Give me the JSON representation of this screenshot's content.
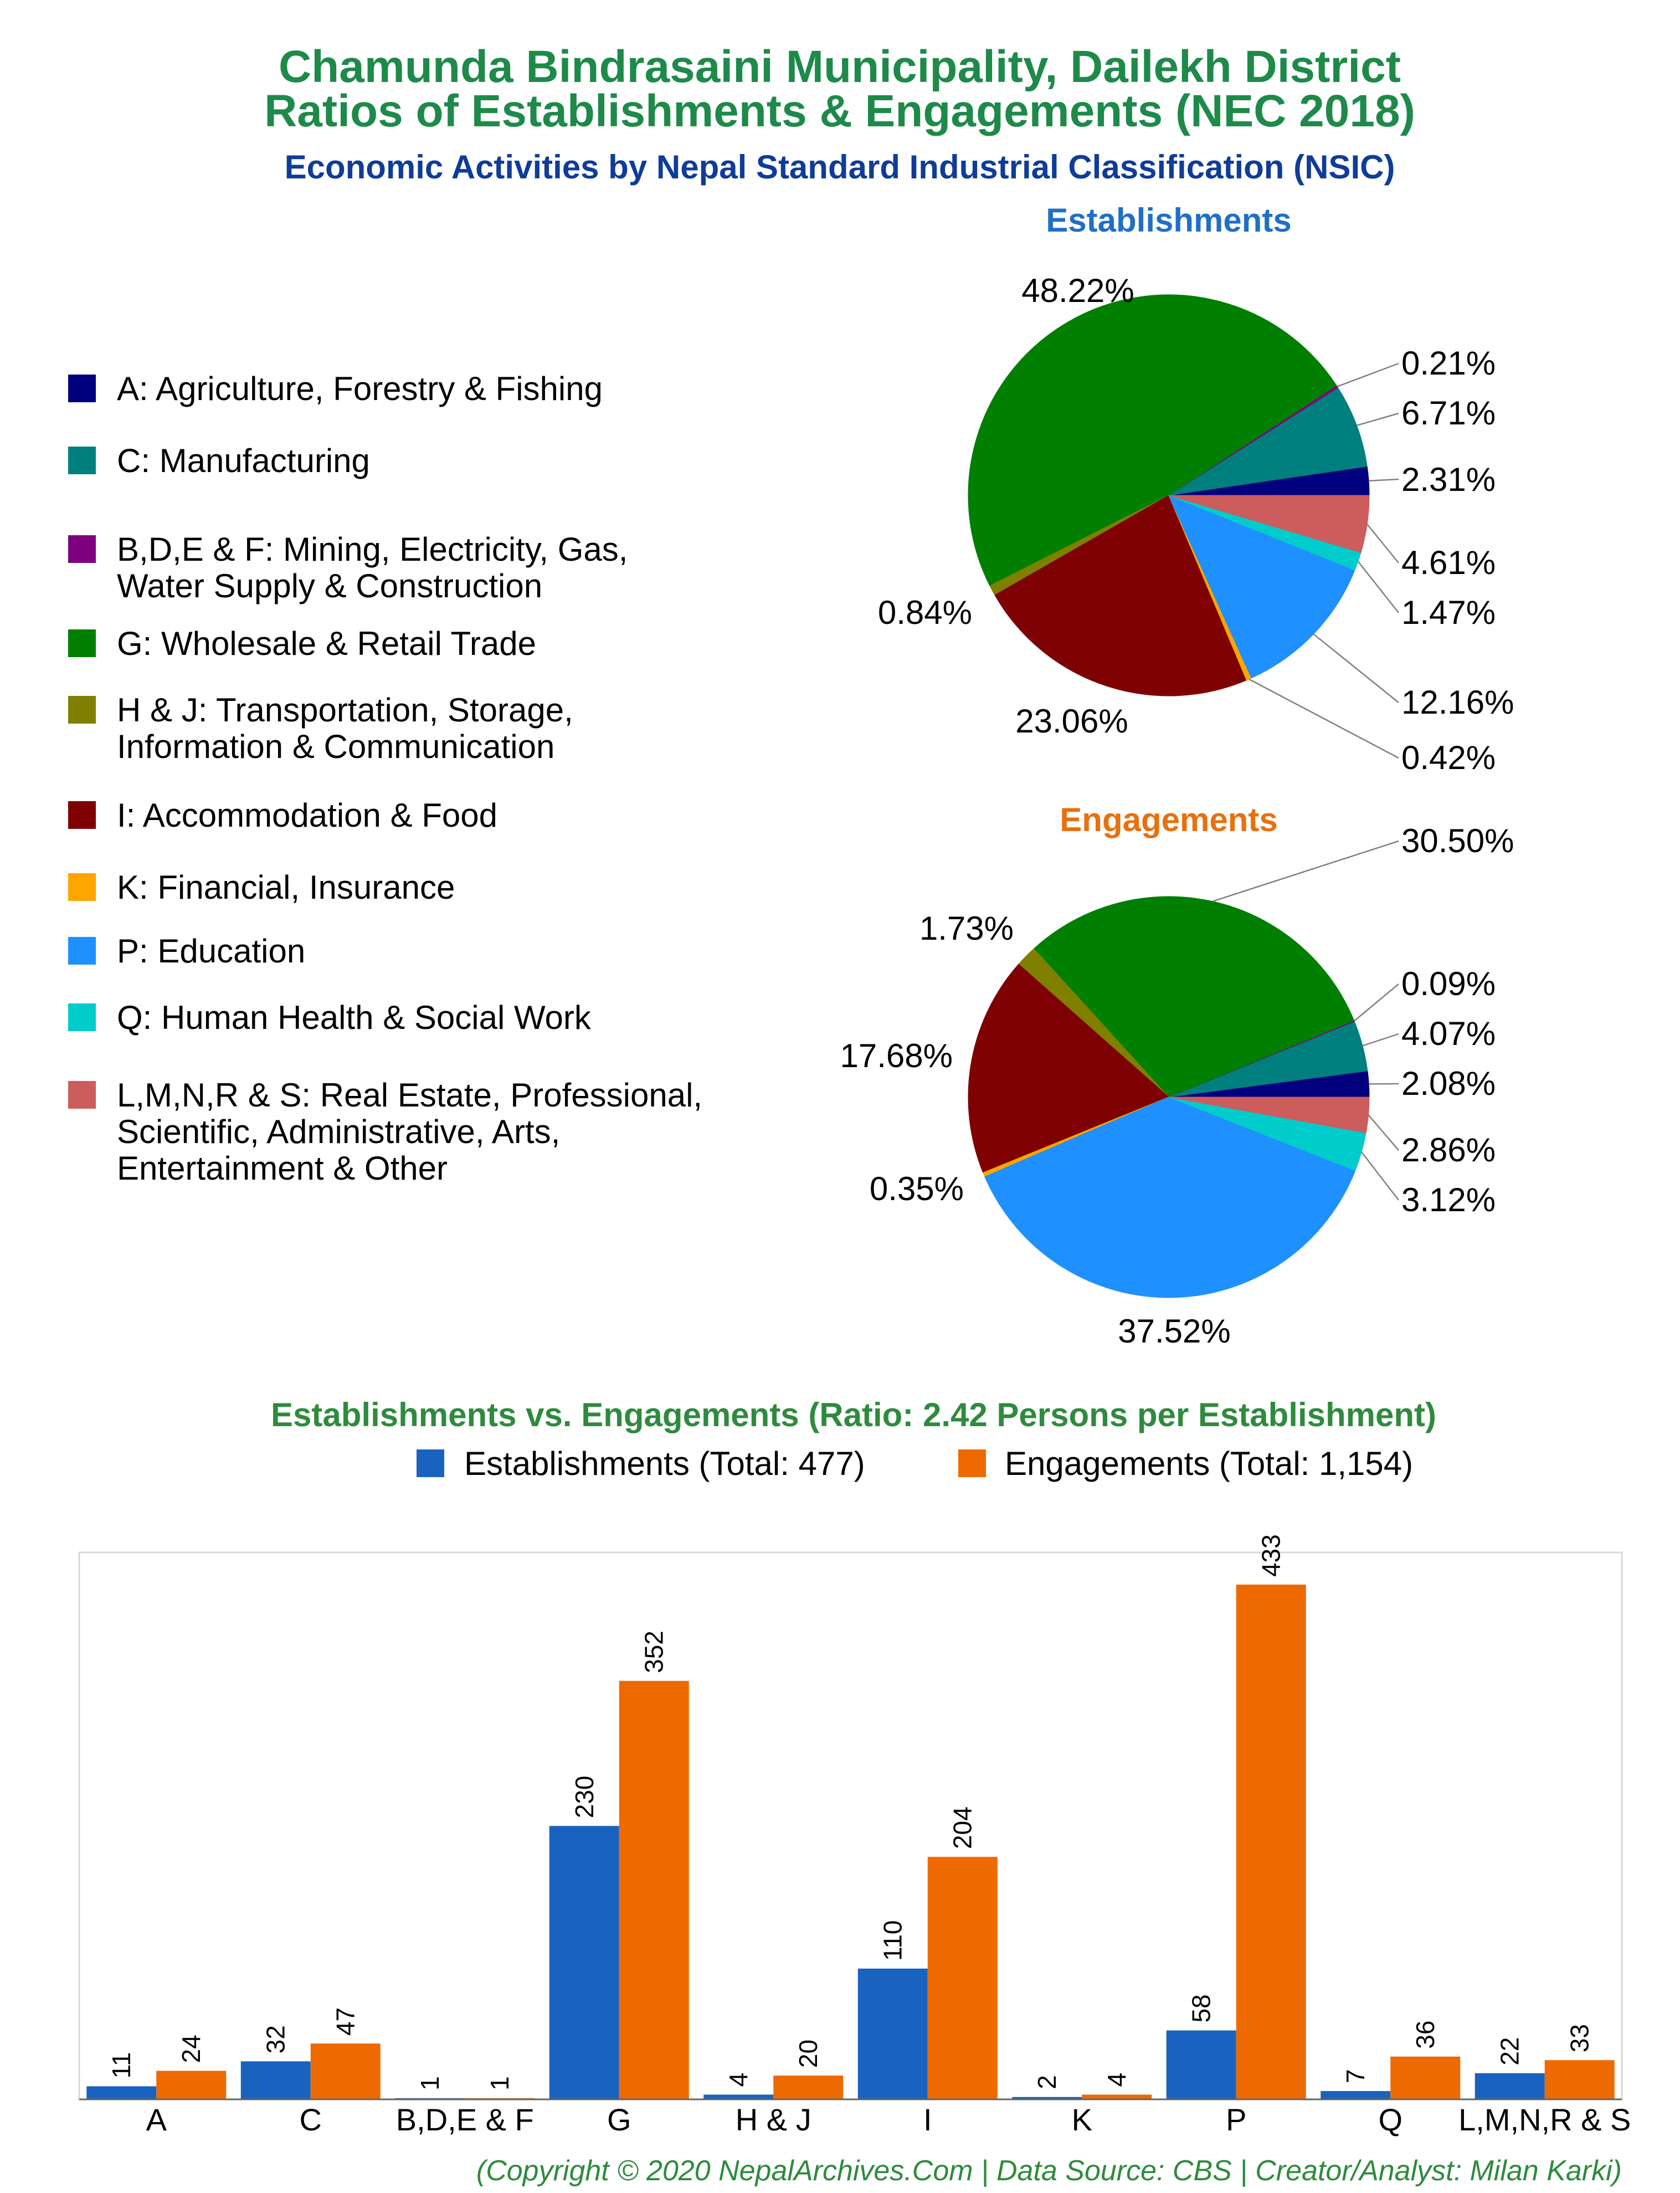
{
  "header": {
    "title_line1": "Chamunda Bindrasaini Municipality, Dailekh District",
    "title_line2": "Ratios of Establishments & Engagements (NEC 2018)",
    "subtitle": "Economic Activities by Nepal Standard Industrial Classification (NSIC)"
  },
  "colors": {
    "title": "#1e8a4a",
    "subtitle": "#0f3c9a",
    "establishments_title": "#1f6fc8",
    "engagements_title": "#e8700f",
    "bar_establishments": "#1a62bf",
    "bar_engagements": "#ee6a00"
  },
  "legend": {
    "items": [
      {
        "lines": [
          "A: Agriculture, Forestry & Fishing"
        ],
        "color": "#00007f"
      },
      {
        "lines": [
          "C: Manufacturing"
        ],
        "color": "#007f7f"
      },
      {
        "lines": [
          "B,D,E & F: Mining, Electricity, Gas,",
          "Water Supply & Construction"
        ],
        "color": "#7f007f"
      },
      {
        "lines": [
          "G: Wholesale & Retail Trade"
        ],
        "color": "#007f00"
      },
      {
        "lines": [
          "H & J: Transportation, Storage,",
          "Information & Communication"
        ],
        "color": "#7f7f00"
      },
      {
        "lines": [
          "I: Accommodation & Food"
        ],
        "color": "#7f0000"
      },
      {
        "lines": [
          "K: Financial, Insurance"
        ],
        "color": "#ffa500"
      },
      {
        "lines": [
          "P: Education"
        ],
        "color": "#1e90ff"
      },
      {
        "lines": [
          "Q: Human Health & Social Work"
        ],
        "color": "#00cccc"
      },
      {
        "lines": [
          "L,M,N,R & S: Real Estate, Professional,",
          "Scientific, Administrative, Arts,",
          "Entertainment & Other"
        ],
        "color": "#cd5c5c"
      }
    ]
  },
  "chart_data": [
    {
      "type": "pie",
      "title": "Establishments",
      "categories": [
        "A",
        "C",
        "B,D,E & F",
        "G",
        "H & J",
        "I",
        "K",
        "P",
        "Q",
        "L,M,N,R & S"
      ],
      "values": [
        2.31,
        6.71,
        0.21,
        48.22,
        0.84,
        23.06,
        0.42,
        12.16,
        1.47,
        4.61
      ],
      "labels": [
        "2.31%",
        "6.71%",
        "0.21%",
        "48.22%",
        "0.84%",
        "23.06%",
        "0.42%",
        "12.16%",
        "1.47%",
        "4.61%"
      ]
    },
    {
      "type": "pie",
      "title": "Engagements",
      "categories": [
        "A",
        "C",
        "B,D,E & F",
        "G",
        "H & J",
        "I",
        "K",
        "P",
        "Q",
        "L,M,N,R & S"
      ],
      "values": [
        2.08,
        4.07,
        0.09,
        30.5,
        1.73,
        17.68,
        0.35,
        37.52,
        3.12,
        2.86
      ],
      "labels": [
        "2.08%",
        "4.07%",
        "0.09%",
        "30.50%",
        "1.73%",
        "17.68%",
        "0.35%",
        "37.52%",
        "3.12%",
        "2.86%"
      ]
    },
    {
      "type": "bar",
      "title": "Establishments vs. Engagements (Ratio: 2.42 Persons per Establishment)",
      "categories": [
        "A",
        "C",
        "B,D,E & F",
        "G",
        "H & J",
        "I",
        "K",
        "P",
        "Q",
        "L,M,N,R & S"
      ],
      "series": [
        {
          "name": "Establishments (Total: 477)",
          "values": [
            11,
            32,
            1,
            230,
            4,
            110,
            2,
            58,
            7,
            22
          ]
        },
        {
          "name": "Engagements (Total: 1,154)",
          "values": [
            24,
            47,
            1,
            352,
            20,
            204,
            4,
            433,
            36,
            33
          ]
        }
      ],
      "ylim": [
        0,
        460
      ],
      "grid": false,
      "legend_position": "top"
    }
  ],
  "footer": {
    "copyright": "(Copyright © 2020 NepalArchives.Com | Data Source: CBS | Creator/Analyst: Milan Karki)"
  }
}
